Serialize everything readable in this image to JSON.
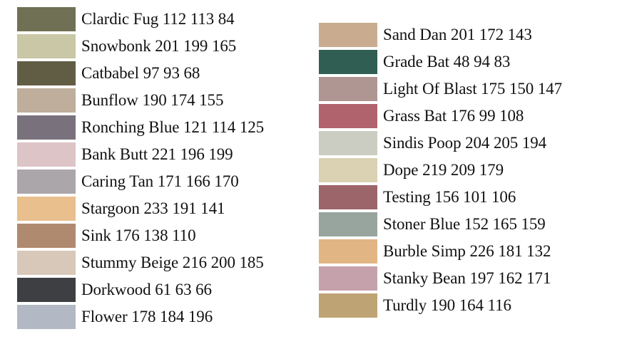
{
  "left_column": [
    {
      "label": "Clardic Fug 112 113 84",
      "color": "#707154"
    },
    {
      "label": "Snowbonk 201 199 165",
      "color": "#c9c7a5"
    },
    {
      "label": "Catbabel 97 93 68",
      "color": "#615d44"
    },
    {
      "label": "Bunflow 190 174 155",
      "color": "#beae9b"
    },
    {
      "label": "Ronching Blue 121 114 125",
      "color": "#79727d"
    },
    {
      "label": "Bank Butt 221 196 199",
      "color": "#ddc4c7"
    },
    {
      "label": "Caring Tan 171 166 170",
      "color": "#aba6aa"
    },
    {
      "label": "Stargoon 233 191 141",
      "color": "#e9bf8d"
    },
    {
      "label": "Sink 176 138 110",
      "color": "#b08a6e"
    },
    {
      "label": "Stummy Beige 216 200 185",
      "color": "#d8c8b9"
    },
    {
      "label": "Dorkwood 61 63 66",
      "color": "#3d3f42"
    },
    {
      "label": "Flower 178 184 196",
      "color": "#b2b8c4"
    }
  ],
  "right_column": [
    {
      "label": "Sand Dan 201 172 143",
      "color": "#c9ac8f"
    },
    {
      "label": "Grade Bat 48 94 83",
      "color": "#305e53"
    },
    {
      "label": "Light Of Blast 175 150 147",
      "color": "#af9693"
    },
    {
      "label": "Grass Bat 176 99 108",
      "color": "#b0636c"
    },
    {
      "label": "Sindis Poop 204 205 194",
      "color": "#cccdc2"
    },
    {
      "label": "Dope 219 209 179",
      "color": "#dbd1b3"
    },
    {
      "label": "Testing 156 101 106",
      "color": "#9c656a"
    },
    {
      "label": "Stoner Blue 152 165 159",
      "color": "#98a59f"
    },
    {
      "label": "Burble Simp 226 181 132",
      "color": "#e2b584"
    },
    {
      "label": "Stanky Bean 197 162 171",
      "color": "#c5a2ab"
    },
    {
      "label": "Turdly 190 164 116",
      "color": "#bea474"
    }
  ]
}
